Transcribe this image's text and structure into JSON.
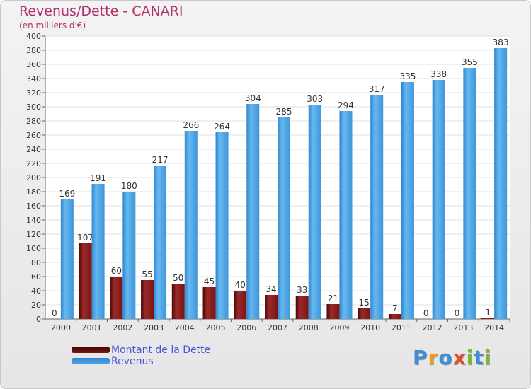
{
  "chart_data": {
    "type": "bar",
    "title": "Revenus/Dette - CANARI",
    "subtitle": "(en milliers d'€)",
    "categories": [
      "2000",
      "2001",
      "2002",
      "2003",
      "2004",
      "2005",
      "2006",
      "2007",
      "2008",
      "2009",
      "2010",
      "2011",
      "2012",
      "2013",
      "2014"
    ],
    "series": [
      {
        "name": "Montant de la Dette",
        "color": "#7a1414",
        "values": [
          0,
          107,
          60,
          55,
          50,
          45,
          40,
          34,
          33,
          21,
          15,
          7,
          0,
          0,
          1
        ]
      },
      {
        "name": "Revenus",
        "color": "#4ea6e6",
        "values": [
          169,
          191,
          180,
          217,
          266,
          264,
          304,
          285,
          303,
          294,
          317,
          335,
          338,
          355,
          383
        ]
      }
    ],
    "ylim": [
      0,
      400
    ],
    "yticks": [
      0,
      20,
      40,
      60,
      80,
      100,
      120,
      140,
      160,
      180,
      200,
      220,
      240,
      260,
      280,
      300,
      320,
      340,
      360,
      380,
      400
    ],
    "grid": true,
    "legend": "bottom-left"
  },
  "logo": {
    "text": "Proxiti",
    "colors": [
      "#3a8fd8",
      "#f09a1a",
      "#3a8fd8",
      "#e0502a",
      "#7ab830",
      "#3a8fd8",
      "#7ab830"
    ]
  }
}
